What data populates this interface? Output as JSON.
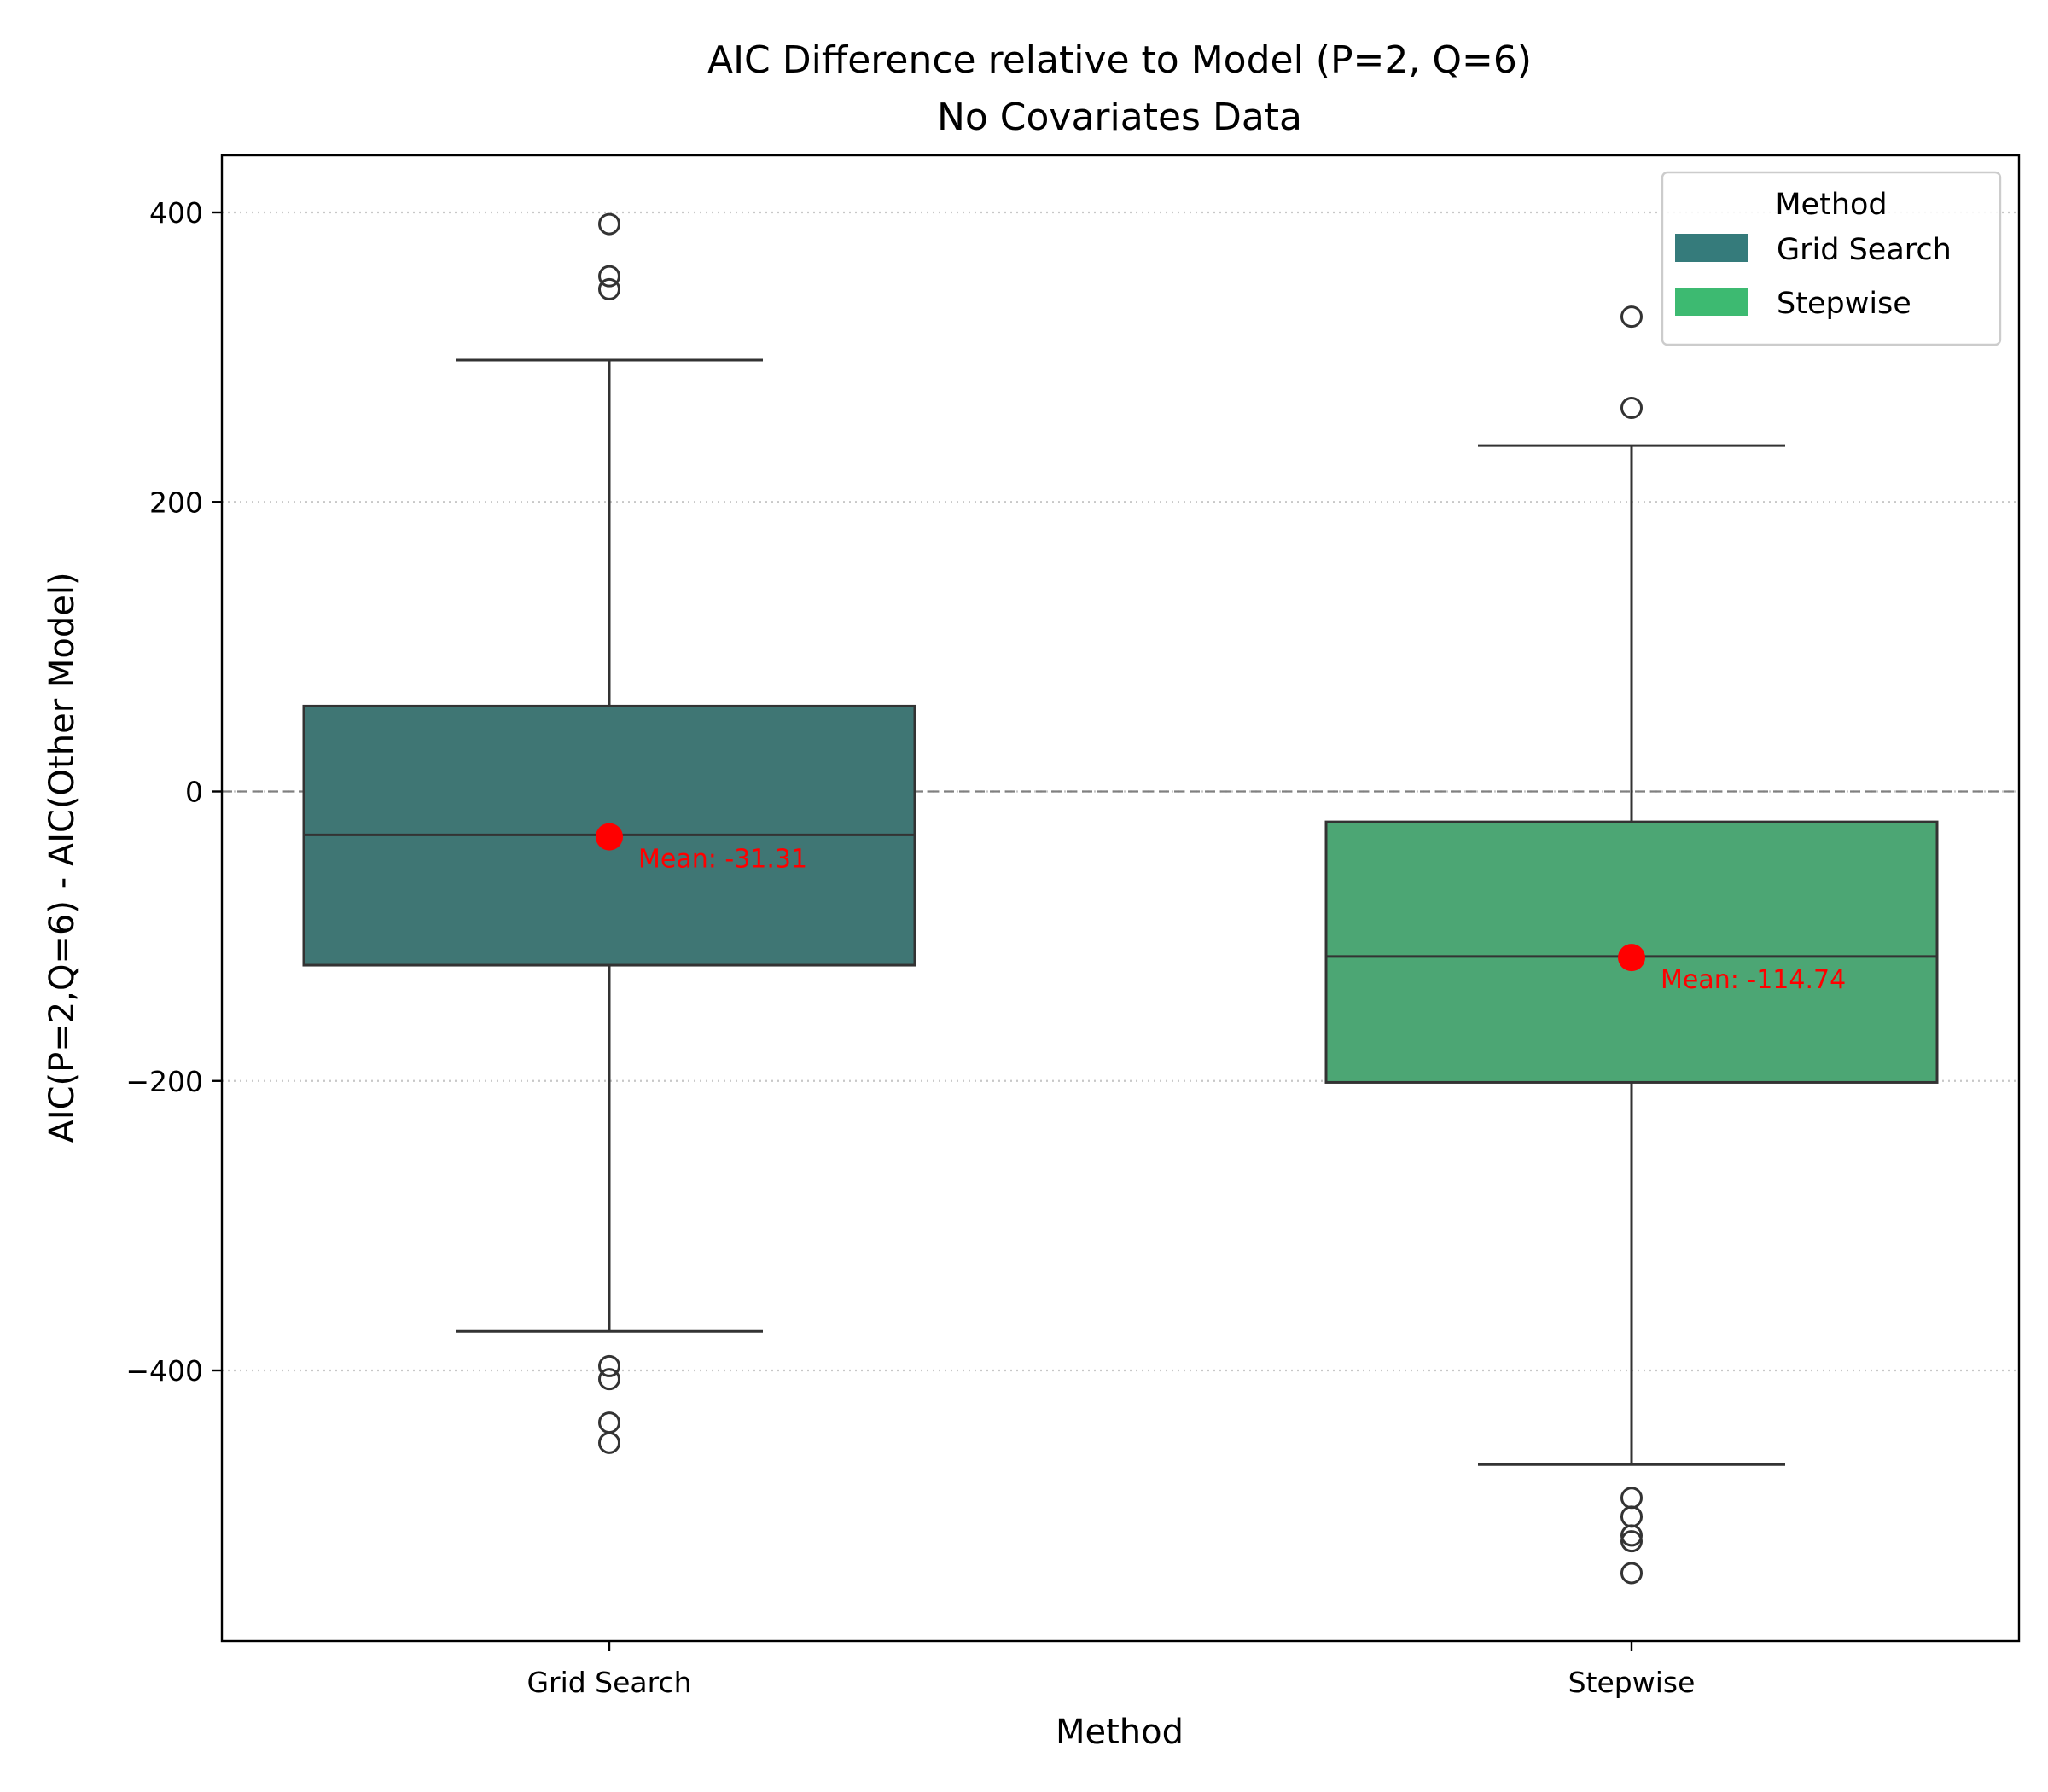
{
  "chart_data": {
    "type": "box",
    "title": "AIC Difference relative to Model (P=2, Q=6)",
    "subtitle": "No Covariates Data",
    "xlabel": "Method",
    "ylabel": "AIC(P=2,Q=6) - AIC(Other Model)",
    "ylim": [
      -560,
      440
    ],
    "yticks": [
      -400,
      -200,
      0,
      200,
      400
    ],
    "ytick_labels": [
      "−400",
      "−200",
      "0",
      "200",
      "400"
    ],
    "categories": [
      "Grid Search",
      "Stepwise"
    ],
    "grid": "horizontal dotted",
    "reference_line": 0,
    "legend": {
      "title": "Method",
      "placement": "top-right",
      "entries": [
        "Grid Search",
        "Stepwise"
      ]
    },
    "series": [
      {
        "name": "Grid Search",
        "color": "#3f7674",
        "legend_color": "#357b7b",
        "whisker_low": -373,
        "q1": -120,
        "median": -30,
        "q3": 59,
        "whisker_high": 298,
        "mean": -31.31,
        "mean_label": "Mean: -31.31",
        "outliers": [
          392,
          356,
          347,
          -397,
          -406,
          -436,
          -450
        ]
      },
      {
        "name": "Stepwise",
        "color": "#4ca674",
        "legend_color": "#3dba71",
        "whisker_low": -465,
        "q1": -201,
        "median": -114,
        "q3": -21,
        "whisker_high": 239,
        "mean": -114.74,
        "mean_label": "Mean: -114.74",
        "outliers": [
          328,
          265,
          -488,
          -501,
          -514,
          -518,
          -540
        ]
      }
    ]
  }
}
